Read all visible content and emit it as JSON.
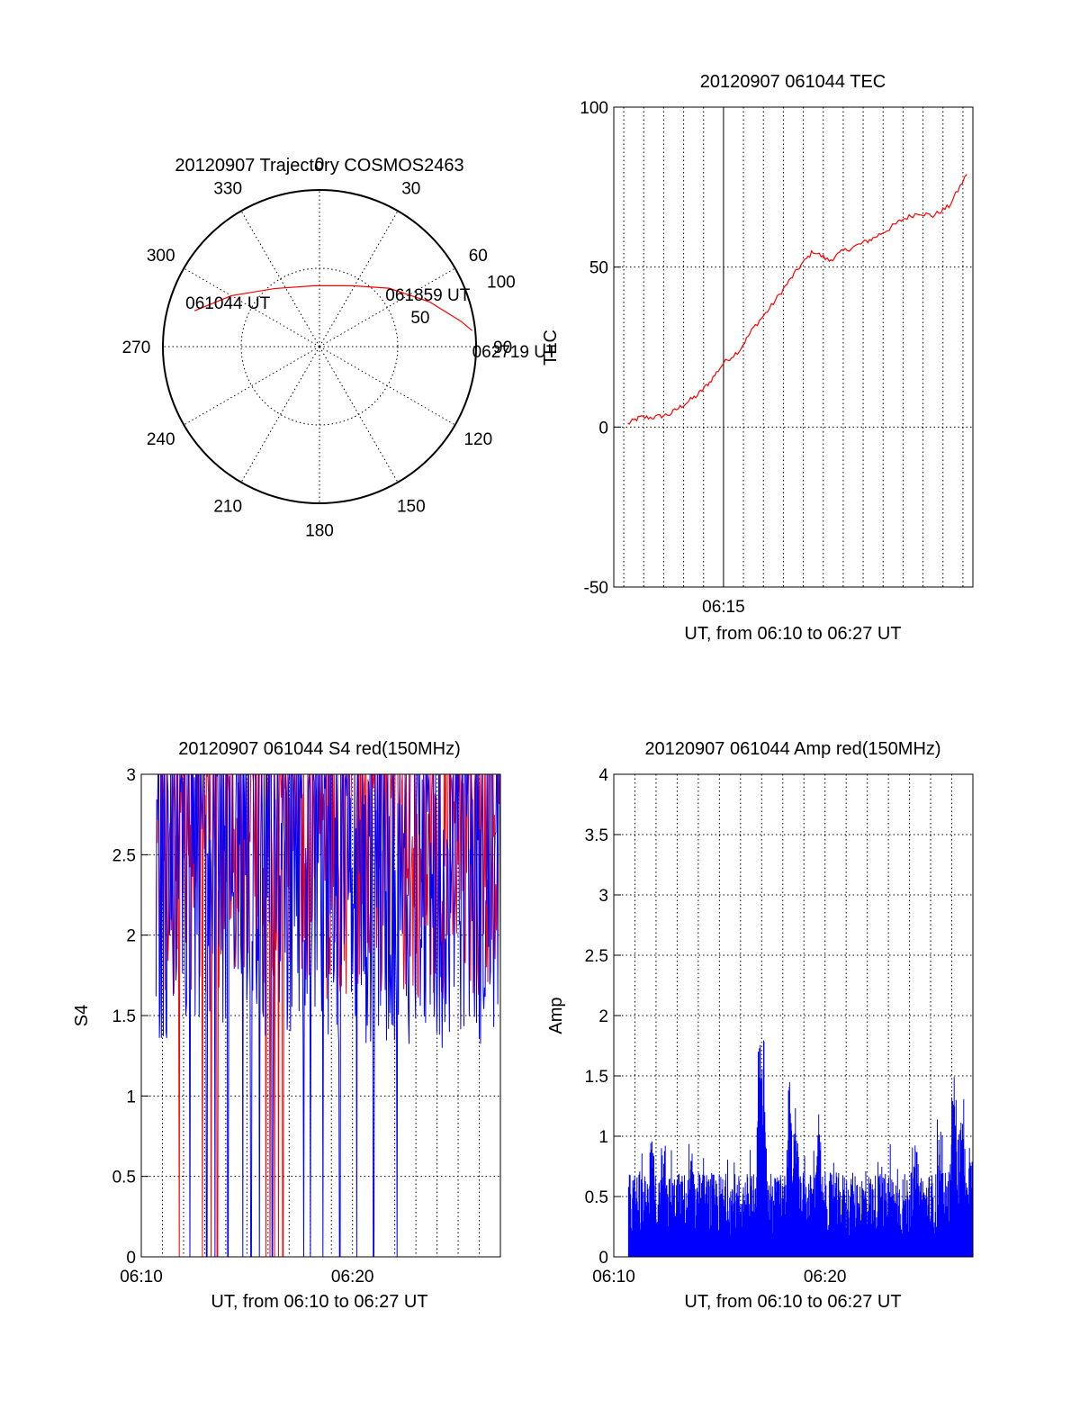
{
  "chart_data": [
    {
      "type": "polar",
      "title": "20120907 Trajectory COSMOS2463",
      "azimuth_labels": [
        "0",
        "30",
        "60",
        "90",
        "120",
        "150",
        "180",
        "210",
        "240",
        "270",
        "300",
        "330"
      ],
      "radial_labels": [
        "50",
        "100"
      ],
      "trajectory": {
        "color": "#ff0000",
        "points": [
          {
            "az": 286,
            "r": 83
          },
          {
            "az": 300,
            "r": 65
          },
          {
            "az": 322,
            "r": 47
          },
          {
            "az": 355,
            "r": 39
          },
          {
            "az": 28,
            "r": 44
          },
          {
            "az": 50,
            "r": 58
          },
          {
            "az": 68,
            "r": 76
          },
          {
            "az": 80,
            "r": 92
          },
          {
            "az": 84,
            "r": 98
          }
        ],
        "annotations": [
          {
            "text": "061044 UT",
            "at": "start"
          },
          {
            "text": "061859 UT",
            "at": "middle"
          },
          {
            "text": "062719 UT",
            "at": "end"
          }
        ]
      }
    },
    {
      "type": "line",
      "title": "20120907 061044 TEC",
      "xlabel": "UT, from 06:10 to 06:27 UT",
      "ylabel": "TEC",
      "xlim": [
        9.5,
        27.5
      ],
      "ylim": [
        -50,
        100
      ],
      "yticks": [
        "100",
        "50",
        "0",
        "-50"
      ],
      "xticks": [
        {
          "value": 15,
          "label": "06:15"
        }
      ],
      "grid": true,
      "series": [
        {
          "color": "#ff0000",
          "x": [
            10.2,
            10.8,
            11.5,
            12.3,
            13.0,
            13.7,
            14.3,
            15.0,
            15.8,
            16.5,
            17.3,
            18.1,
            18.8,
            19.5,
            20.3,
            21.0,
            21.8,
            22.5,
            23.3,
            24.0,
            24.8,
            25.5,
            26.3,
            27.2
          ],
          "y": [
            1,
            3,
            3,
            4,
            7,
            10,
            14,
            20,
            24,
            31,
            37,
            44,
            50,
            55,
            52,
            55,
            57,
            59,
            62,
            65,
            67,
            66,
            69,
            79
          ]
        }
      ]
    },
    {
      "type": "line",
      "title": "20120907 061044 S4 red(150MHz)",
      "xlabel": "UT, from 06:10 to 06:27 UT",
      "ylabel": "S4",
      "xlim": [
        10,
        27
      ],
      "ylim": [
        0,
        3
      ],
      "xticks": [
        {
          "value": 10,
          "label": "06:10"
        },
        {
          "value": 20,
          "label": "06:20"
        }
      ],
      "yticks": [
        "0",
        "0.5",
        "1",
        "1.5",
        "2",
        "2.5",
        "3"
      ],
      "grid": true,
      "series": [
        {
          "color": "#ff0000",
          "band": [
            1.6,
            3.0
          ],
          "drops_to_zero": [
            11.8,
            12.9,
            13.3,
            13.6,
            15.9,
            16.1,
            16.3,
            16.5,
            16.7
          ]
        },
        {
          "color": "#0000ff",
          "band": [
            1.3,
            3.0
          ],
          "drops_to_zero": [
            12.3,
            13.1,
            13.5,
            14.1,
            14.8,
            15.2,
            15.6,
            16.2,
            17.7,
            18.0,
            18.6,
            19.4,
            20.2,
            21.0,
            22.1
          ]
        }
      ]
    },
    {
      "type": "line",
      "title": "20120907 061044 Amp red(150MHz)",
      "xlabel": "UT, from 06:10 to 06:27 UT",
      "ylabel": "Amp",
      "xlim": [
        10,
        27
      ],
      "ylim": [
        0,
        4
      ],
      "xticks": [
        {
          "value": 10,
          "label": "06:10"
        },
        {
          "value": 20,
          "label": "06:20"
        }
      ],
      "yticks": [
        "0",
        "0.5",
        "1",
        "1.5",
        "2",
        "2.5",
        "3",
        "3.5",
        "4"
      ],
      "grid": true,
      "series": [
        {
          "color": "#0000ff",
          "start": 10.7,
          "end": 27.0,
          "typical_peak": 0.55,
          "bursts": [
            {
              "x": 16.9,
              "y": 2.0
            },
            {
              "x": 17.1,
              "y": 1.9
            },
            {
              "x": 18.3,
              "y": 1.55
            },
            {
              "x": 18.6,
              "y": 1.3
            },
            {
              "x": 19.7,
              "y": 1.2
            },
            {
              "x": 11.8,
              "y": 1.05
            },
            {
              "x": 12.4,
              "y": 1.1
            },
            {
              "x": 13.7,
              "y": 0.9
            },
            {
              "x": 24.3,
              "y": 1.0
            },
            {
              "x": 26.1,
              "y": 1.4
            },
            {
              "x": 26.5,
              "y": 1.2
            }
          ]
        }
      ]
    }
  ]
}
